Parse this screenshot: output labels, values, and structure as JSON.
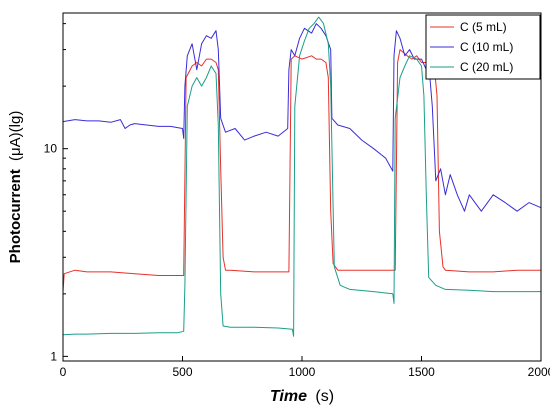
{
  "chart_data": {
    "type": "line",
    "xlabel_main": "Time",
    "xlabel_unit": "(s)",
    "ylabel_main": "Photocurrent",
    "ylabel_unit": "(μA)(lg)",
    "xlim": [
      0,
      2000
    ],
    "ylim": [
      0.95,
      45
    ],
    "yscale": "log",
    "x_ticks": [
      0,
      500,
      1000,
      1500,
      2000
    ],
    "y_ticks": [
      1,
      10
    ],
    "legend_position": "top-right",
    "series": [
      {
        "name": "C  (5 mL)",
        "color": "#e8302a",
        "points": [
          [
            0,
            2.05
          ],
          [
            5,
            2.5
          ],
          [
            50,
            2.6
          ],
          [
            100,
            2.55
          ],
          [
            200,
            2.55
          ],
          [
            300,
            2.5
          ],
          [
            400,
            2.45
          ],
          [
            450,
            2.45
          ],
          [
            505,
            2.45
          ],
          [
            515,
            22
          ],
          [
            540,
            25
          ],
          [
            560,
            26
          ],
          [
            580,
            25
          ],
          [
            600,
            27
          ],
          [
            620,
            27
          ],
          [
            640,
            26
          ],
          [
            650,
            24
          ],
          [
            660,
            8
          ],
          [
            670,
            3
          ],
          [
            680,
            2.6
          ],
          [
            700,
            2.6
          ],
          [
            800,
            2.55
          ],
          [
            900,
            2.55
          ],
          [
            945,
            2.55
          ],
          [
            955,
            27
          ],
          [
            970,
            28
          ],
          [
            1000,
            27
          ],
          [
            1040,
            28
          ],
          [
            1060,
            27
          ],
          [
            1080,
            27
          ],
          [
            1100,
            26
          ],
          [
            1110,
            22
          ],
          [
            1120,
            5
          ],
          [
            1130,
            2.8
          ],
          [
            1150,
            2.6
          ],
          [
            1250,
            2.6
          ],
          [
            1350,
            2.6
          ],
          [
            1390,
            2.6
          ],
          [
            1400,
            26
          ],
          [
            1410,
            30
          ],
          [
            1440,
            28
          ],
          [
            1460,
            27
          ],
          [
            1480,
            28
          ],
          [
            1500,
            26
          ],
          [
            1520,
            26
          ],
          [
            1540,
            27
          ],
          [
            1555,
            24
          ],
          [
            1565,
            18
          ],
          [
            1575,
            4
          ],
          [
            1590,
            2.7
          ],
          [
            1600,
            2.6
          ],
          [
            1700,
            2.55
          ],
          [
            1800,
            2.55
          ],
          [
            1900,
            2.6
          ],
          [
            2000,
            2.6
          ]
        ]
      },
      {
        "name": "C  (10 mL)",
        "color": "#3a2dd8",
        "points": [
          [
            0,
            13.5
          ],
          [
            50,
            13.8
          ],
          [
            100,
            13.6
          ],
          [
            150,
            13.6
          ],
          [
            200,
            13.4
          ],
          [
            240,
            13.8
          ],
          [
            260,
            12.5
          ],
          [
            280,
            13
          ],
          [
            300,
            13.2
          ],
          [
            350,
            13
          ],
          [
            400,
            12.8
          ],
          [
            450,
            12.8
          ],
          [
            500,
            12.5
          ],
          [
            505,
            11.2
          ],
          [
            510,
            20
          ],
          [
            520,
            28
          ],
          [
            540,
            32
          ],
          [
            560,
            24
          ],
          [
            580,
            32
          ],
          [
            600,
            35
          ],
          [
            620,
            34
          ],
          [
            640,
            37
          ],
          [
            650,
            30
          ],
          [
            660,
            14
          ],
          [
            680,
            12
          ],
          [
            720,
            12.5
          ],
          [
            760,
            11
          ],
          [
            800,
            11.5
          ],
          [
            850,
            12
          ],
          [
            900,
            11.5
          ],
          [
            940,
            12.5
          ],
          [
            945,
            24
          ],
          [
            955,
            30
          ],
          [
            970,
            28
          ],
          [
            990,
            34
          ],
          [
            1010,
            38
          ],
          [
            1040,
            36
          ],
          [
            1060,
            40
          ],
          [
            1080,
            38
          ],
          [
            1100,
            35
          ],
          [
            1120,
            30
          ],
          [
            1125,
            14
          ],
          [
            1150,
            13
          ],
          [
            1200,
            12.5
          ],
          [
            1250,
            11
          ],
          [
            1300,
            10
          ],
          [
            1350,
            9
          ],
          [
            1380,
            7.8
          ],
          [
            1385,
            28
          ],
          [
            1395,
            37
          ],
          [
            1410,
            34
          ],
          [
            1430,
            28
          ],
          [
            1450,
            30
          ],
          [
            1470,
            27
          ],
          [
            1500,
            27
          ],
          [
            1520,
            24
          ],
          [
            1535,
            22
          ],
          [
            1545,
            16
          ],
          [
            1560,
            7
          ],
          [
            1580,
            8
          ],
          [
            1600,
            6
          ],
          [
            1620,
            7.5
          ],
          [
            1650,
            6
          ],
          [
            1680,
            5
          ],
          [
            1700,
            6
          ],
          [
            1750,
            5
          ],
          [
            1800,
            6
          ],
          [
            1850,
            5.5
          ],
          [
            1900,
            5
          ],
          [
            1950,
            5.5
          ],
          [
            2000,
            5.2
          ]
        ]
      },
      {
        "name": "C  (20 mL)",
        "color": "#1a9e8a",
        "points": [
          [
            0,
            1.27
          ],
          [
            50,
            1.28
          ],
          [
            100,
            1.28
          ],
          [
            200,
            1.29
          ],
          [
            300,
            1.29
          ],
          [
            400,
            1.3
          ],
          [
            480,
            1.3
          ],
          [
            505,
            1.32
          ],
          [
            510,
            2.2
          ],
          [
            520,
            16
          ],
          [
            540,
            20
          ],
          [
            560,
            22
          ],
          [
            580,
            20
          ],
          [
            600,
            22
          ],
          [
            620,
            25
          ],
          [
            640,
            23
          ],
          [
            650,
            13
          ],
          [
            660,
            2
          ],
          [
            670,
            1.4
          ],
          [
            700,
            1.38
          ],
          [
            800,
            1.38
          ],
          [
            900,
            1.37
          ],
          [
            960,
            1.35
          ],
          [
            965,
            1.25
          ],
          [
            970,
            16
          ],
          [
            990,
            28
          ],
          [
            1010,
            33
          ],
          [
            1030,
            38
          ],
          [
            1050,
            40
          ],
          [
            1070,
            43
          ],
          [
            1090,
            40
          ],
          [
            1110,
            32
          ],
          [
            1120,
            20
          ],
          [
            1135,
            2.7
          ],
          [
            1160,
            2.2
          ],
          [
            1200,
            2.1
          ],
          [
            1300,
            2.05
          ],
          [
            1380,
            2.0
          ],
          [
            1385,
            1.8
          ],
          [
            1390,
            14
          ],
          [
            1410,
            22
          ],
          [
            1430,
            25
          ],
          [
            1450,
            28
          ],
          [
            1480,
            27
          ],
          [
            1500,
            25
          ],
          [
            1510,
            18
          ],
          [
            1520,
            6
          ],
          [
            1530,
            2.4
          ],
          [
            1560,
            2.2
          ],
          [
            1600,
            2.1
          ],
          [
            1700,
            2.08
          ],
          [
            1800,
            2.05
          ],
          [
            1900,
            2.05
          ],
          [
            2000,
            2.05
          ]
        ]
      }
    ]
  }
}
